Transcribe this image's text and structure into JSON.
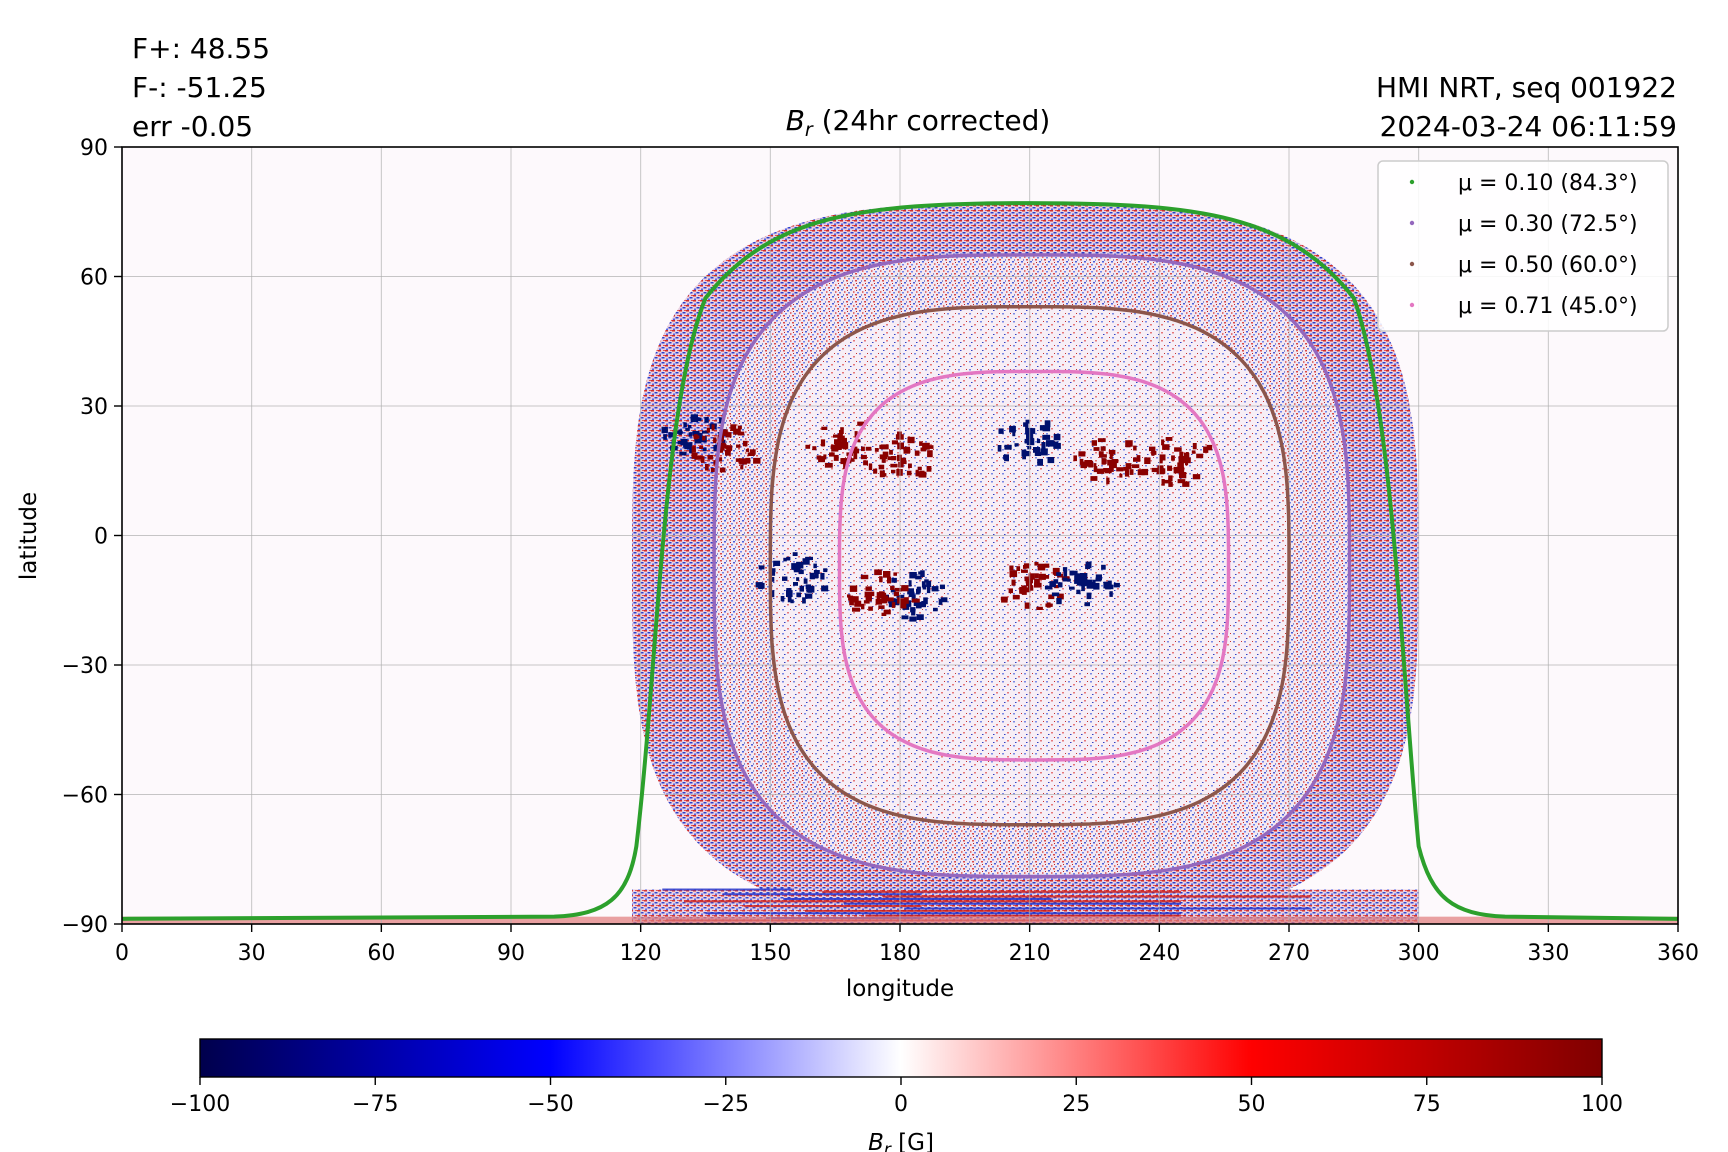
{
  "header": {
    "flux_pos": "F+: 48.55",
    "flux_neg": "F-: -51.25",
    "err": "err -0.05",
    "source": "HMI NRT, seq 001922",
    "timestamp": "2024-03-24 06:11:59"
  },
  "chart_data": {
    "type": "heatmap",
    "title_main": "B",
    "title_sub": "r",
    "title_rest": " (24hr corrected)",
    "xlabel": "longitude",
    "ylabel": "latitude",
    "xlim": [
      0,
      360
    ],
    "ylim": [
      -90,
      90
    ],
    "xticks": [
      0,
      30,
      60,
      90,
      120,
      150,
      180,
      210,
      240,
      270,
      300,
      330,
      360
    ],
    "xtick_labels": [
      "0",
      "30",
      "60",
      "90",
      "120",
      "150",
      "180",
      "210",
      "240",
      "270",
      "300",
      "330",
      "360"
    ],
    "yticks": [
      90,
      60,
      30,
      0,
      -30,
      -60,
      -90
    ],
    "ytick_labels": [
      "90",
      "60",
      "30",
      "0",
      "−30",
      "−60",
      "−90"
    ],
    "grid": true,
    "disk_center": {
      "lon": 210,
      "lat": -7
    },
    "contours": [
      {
        "label": "μ = 0.10 (84.3°)",
        "mu": 0.1,
        "color": "#2ca02c",
        "lat_top": 77,
        "lat_bottom": -90,
        "lon_left": 118,
        "lon_right": 300
      },
      {
        "label": "μ = 0.30 (72.5°)",
        "mu": 0.3,
        "color": "#9467bd",
        "lat_top": 65,
        "lat_bottom": -79,
        "lon_left": 137,
        "lon_right": 284
      },
      {
        "label": "μ = 0.50 (60.0°)",
        "mu": 0.5,
        "color": "#8c564b",
        "lat_top": 53,
        "lat_bottom": -67,
        "lon_left": 150,
        "lon_right": 270
      },
      {
        "label": "μ = 0.71 (45.0°)",
        "mu": 0.71,
        "color": "#e377c2",
        "lat_top": 38,
        "lat_bottom": -52,
        "lon_left": 166,
        "lon_right": 256
      }
    ],
    "legend_placement": "top-right",
    "active_regions": [
      {
        "lon": 133,
        "lat": 23,
        "polarity": "negative"
      },
      {
        "lon": 140,
        "lat": 20,
        "polarity": "positive"
      },
      {
        "lon": 167,
        "lat": 21,
        "polarity": "positive"
      },
      {
        "lon": 180,
        "lat": 18,
        "polarity": "positive"
      },
      {
        "lon": 210,
        "lat": 22,
        "polarity": "negative"
      },
      {
        "lon": 229,
        "lat": 17,
        "polarity": "positive"
      },
      {
        "lon": 245,
        "lat": 17,
        "polarity": "positive"
      },
      {
        "lon": 184,
        "lat": -14,
        "polarity": "negative"
      },
      {
        "lon": 211,
        "lat": -12,
        "polarity": "positive"
      },
      {
        "lon": 222,
        "lat": -11,
        "polarity": "negative"
      },
      {
        "lon": 176,
        "lat": -14,
        "polarity": "positive"
      },
      {
        "lon": 155,
        "lat": -10,
        "polarity": "negative"
      }
    ],
    "colorbar": {
      "label_main": "B",
      "label_sub": "r",
      "label_rest": " [G]",
      "min": -100,
      "max": 100,
      "ticks": [
        -100,
        -75,
        -50,
        -25,
        0,
        25,
        50,
        75,
        100
      ],
      "tick_labels": [
        "−100",
        "−75",
        "−50",
        "−25",
        "0",
        "25",
        "50",
        "75",
        "100"
      ],
      "colormap": "seismic",
      "colors": [
        "#00004c",
        "#0000ff",
        "#ffffff",
        "#ff0000",
        "#7f0000"
      ]
    }
  }
}
